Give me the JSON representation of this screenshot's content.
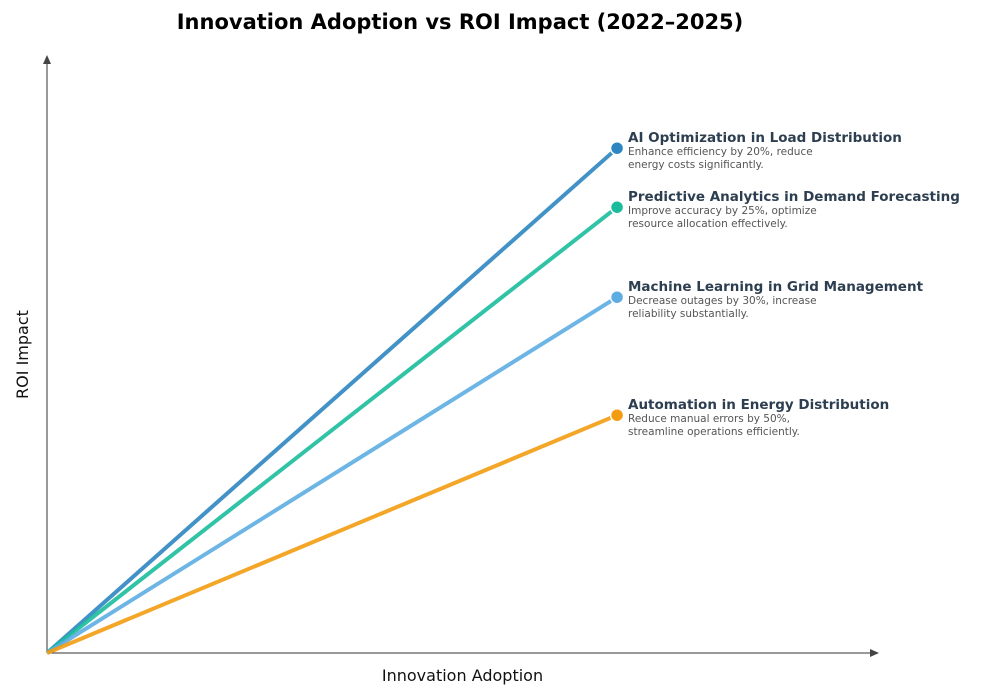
{
  "chart_data": {
    "type": "line",
    "title": "Innovation Adoption vs ROI Impact (2022–2025)",
    "xlabel": "Innovation Adoption",
    "ylabel": "ROI Impact",
    "xlim": [
      0,
      1
    ],
    "ylim": [
      0,
      1
    ],
    "ticks": "none",
    "grid": false,
    "series": [
      {
        "name": "AI Optimization in Load Distribution",
        "description": "Enhance efficiency by 20%, reduce energy costs significantly.",
        "color": "#2e86c1",
        "x": [
          0,
          0.686
        ],
        "y": [
          0,
          0.847
        ]
      },
      {
        "name": "Predictive Analytics in Demand Forecasting",
        "description": "Improve accuracy by 25%, optimize resource allocation effectively.",
        "color": "#1abc9c",
        "x": [
          0,
          0.686
        ],
        "y": [
          0,
          0.748
        ]
      },
      {
        "name": "Machine Learning in Grid Management",
        "description": "Decrease outages by 30%, increase reliability substantially.",
        "color": "#5dade2",
        "x": [
          0,
          0.686
        ],
        "y": [
          0,
          0.597
        ]
      },
      {
        "name": "Automation in Energy Distribution",
        "description": "Reduce manual errors by 50%, streamline operations efficiently.",
        "color": "#f39c12",
        "x": [
          0,
          0.686
        ],
        "y": [
          0,
          0.399
        ]
      }
    ]
  }
}
